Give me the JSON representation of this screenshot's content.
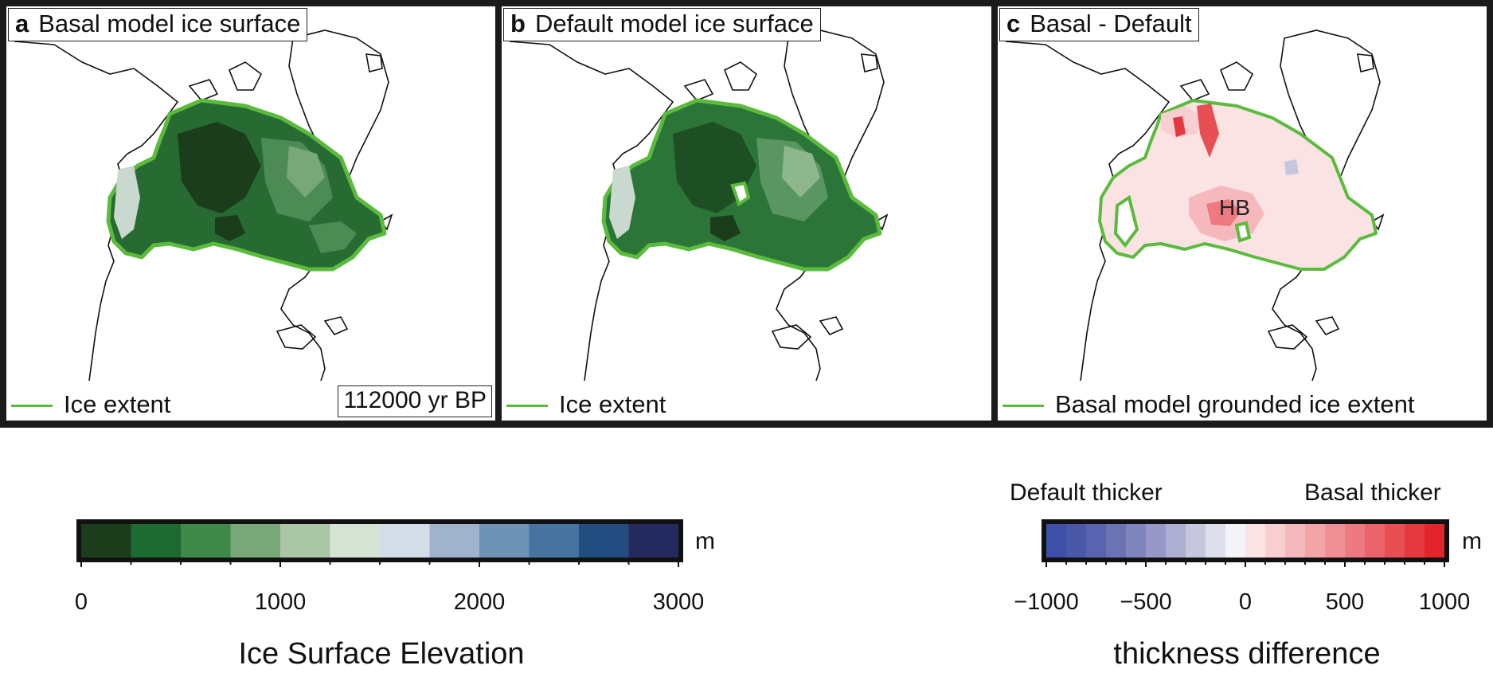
{
  "panels": [
    {
      "letter": "a",
      "title": "Basal model ice surface",
      "legend": "Ice extent",
      "time": "112000 yr BP"
    },
    {
      "letter": "b",
      "title": "Default model ice surface",
      "legend": "Ice extent"
    },
    {
      "letter": "c",
      "title": "Basal - Default",
      "legend": "Basal model grounded ice extent",
      "label": "HB"
    }
  ],
  "colorbar_elevation": {
    "title": "Ice Surface Elevation",
    "unit": "m",
    "ticks": [
      "0",
      "1000",
      "2000",
      "3000"
    ],
    "range": [
      0,
      3000
    ],
    "step": 250,
    "colors": [
      "#1b3d1b",
      "#1e6b32",
      "#3f8a4a",
      "#78a878",
      "#a9c7a4",
      "#d6e4d6",
      "#d2dde8",
      "#9fb4cc",
      "#6f93b7",
      "#46739f",
      "#234d80",
      "#242a5e"
    ]
  },
  "colorbar_difference": {
    "title": "thickness difference",
    "unit": "m",
    "left_label": "Default thicker",
    "right_label": "Basal thicker",
    "ticks": [
      "−1000",
      "−500",
      "0",
      "500",
      "1000"
    ],
    "range": [
      -1000,
      1000
    ],
    "step": 100,
    "colors": [
      "#3d4fa6",
      "#4a58aa",
      "#5964ae",
      "#6b73b4",
      "#7f85bd",
      "#9699c7",
      "#adaed2",
      "#c6c6de",
      "#dedfec",
      "#f4f4f8",
      "#fbe3e4",
      "#f8cfd1",
      "#f5b9bd",
      "#f3a4a9",
      "#f08f95",
      "#ed7a80",
      "#ea646a",
      "#e84f55",
      "#e53940",
      "#e2242b"
    ]
  },
  "colors": {
    "ice_extent": "#5bbb3c",
    "frame": "#1b1b1b"
  }
}
